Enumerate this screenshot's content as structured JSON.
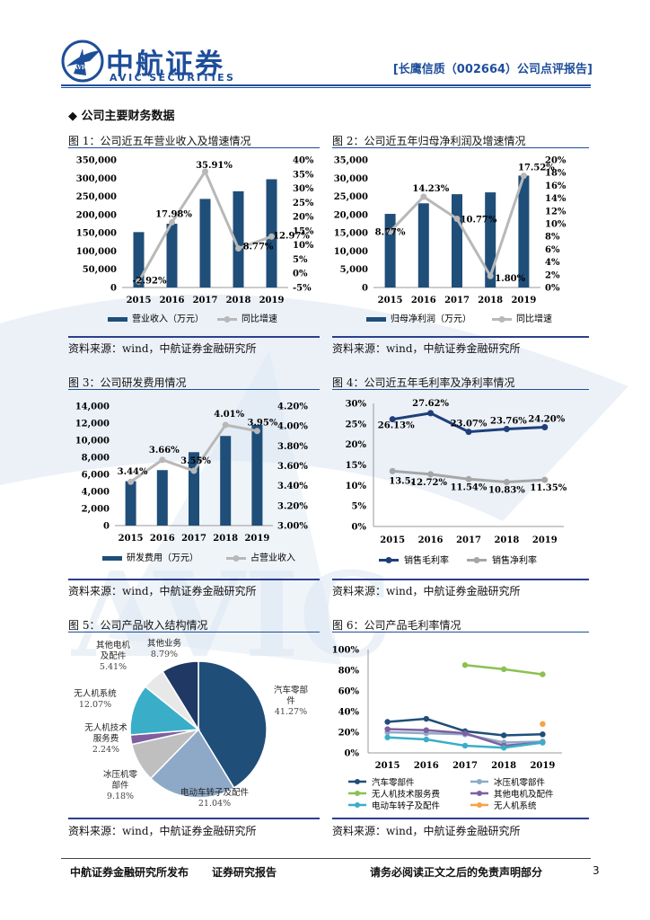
{
  "header": {
    "logo_cn": "中航证券",
    "logo_en": "AVIC SECURITIES",
    "logo_mark": "AVIC",
    "report_tag": "[长鹰信质（002664）公司点评报告]"
  },
  "section_title": "◆  公司主要财务数据",
  "source_text": "资料来源：wind，中航证券金融研究所",
  "footer": {
    "left": "中航证券金融研究所发布",
    "middle": "证券研究报告",
    "right": "请务必阅读正文之后的免责声明部分",
    "page": "3"
  },
  "watermark_text": "AVIC",
  "colors": {
    "bar": "#1f4e79",
    "line_gray": "#b8b8b8",
    "navy_line": "#1f3f7a",
    "accent": "#1e4e9a"
  },
  "chart_data": [
    {
      "id": "fig1",
      "type": "bar",
      "title": "图 1：公司近五年营业收入及增速情况",
      "categories": [
        "2015",
        "2016",
        "2017",
        "2018",
        "2019"
      ],
      "series": [
        {
          "name": "营业收入（万元）",
          "type": "bar",
          "axis": "left",
          "values": [
            152000,
            175000,
            243000,
            264000,
            297000
          ]
        },
        {
          "name": "同比增速",
          "type": "line",
          "axis": "right",
          "values": [
            -2.92,
            17.98,
            35.91,
            8.77,
            12.97
          ],
          "labels": [
            "-2.92%",
            "17.98%",
            "35.91%",
            "8.77%",
            "12.97%"
          ]
        }
      ],
      "left_ticks": [
        "0",
        "50,000",
        "100,000",
        "150,000",
        "200,000",
        "250,000",
        "300,000",
        "350,000"
      ],
      "right_ticks": [
        "-5%",
        "0%",
        "5%",
        "10%",
        "15%",
        "20%",
        "25%",
        "30%",
        "35%",
        "40%"
      ],
      "ylim": [
        0,
        350000
      ],
      "y2lim": [
        -5,
        40
      ]
    },
    {
      "id": "fig2",
      "type": "bar",
      "title": "图 2：公司近五年归母净利润及增速情况",
      "categories": [
        "2015",
        "2016",
        "2017",
        "2018",
        "2019"
      ],
      "series": [
        {
          "name": "归母净利润（万元）",
          "type": "bar",
          "axis": "left",
          "values": [
            20200,
            23100,
            25600,
            26100,
            30700
          ]
        },
        {
          "name": "同比增速",
          "type": "line",
          "axis": "right",
          "values": [
            8.77,
            14.23,
            10.77,
            1.8,
            17.52
          ],
          "labels": [
            "8.77%",
            "14.23%",
            "10.77%",
            "1.80%",
            "17.52%"
          ]
        }
      ],
      "left_ticks": [
        "0",
        "5,000",
        "10,000",
        "15,000",
        "20,000",
        "25,000",
        "30,000",
        "35,000"
      ],
      "right_ticks": [
        "0%",
        "2%",
        "4%",
        "6%",
        "8%",
        "10%",
        "12%",
        "14%",
        "16%",
        "18%",
        "20%"
      ],
      "ylim": [
        0,
        35000
      ],
      "y2lim": [
        0,
        20
      ]
    },
    {
      "id": "fig3",
      "type": "bar",
      "title": "图 3：公司研发费用情况",
      "categories": [
        "2015",
        "2016",
        "2017",
        "2018",
        "2019"
      ],
      "series": [
        {
          "name": "研发费用（万元）",
          "type": "bar",
          "axis": "left",
          "values": [
            5200,
            6500,
            8600,
            10500,
            11800
          ]
        },
        {
          "name": "占营业收入",
          "type": "line",
          "axis": "right",
          "values": [
            3.44,
            3.66,
            3.55,
            4.01,
            3.95
          ],
          "labels": [
            "3.44%",
            "3.66%",
            "3.55%",
            "4.01%",
            "3.95%"
          ]
        }
      ],
      "left_ticks": [
        "0",
        "2,000",
        "4,000",
        "6,000",
        "8,000",
        "10,000",
        "12,000",
        "14,000"
      ],
      "right_ticks": [
        "3.00%",
        "3.20%",
        "3.40%",
        "3.60%",
        "3.80%",
        "4.00%",
        "4.20%"
      ],
      "ylim": [
        0,
        14000
      ],
      "y2lim": [
        3.0,
        4.2
      ]
    },
    {
      "id": "fig4",
      "type": "line",
      "title": "图 4：公司近五年毛利率及净利率情况",
      "categories": [
        "2015",
        "2016",
        "2017",
        "2018",
        "2019"
      ],
      "series": [
        {
          "name": "销售毛利率",
          "values": [
            26.13,
            27.62,
            23.07,
            23.76,
            24.2
          ],
          "labels": [
            "26.13%",
            "27.62%",
            "23.07%",
            "23.76%",
            "24.20%"
          ]
        },
        {
          "name": "销售净利率",
          "values": [
            13.5,
            12.72,
            11.54,
            10.83,
            11.35
          ],
          "labels": [
            "13.5.",
            "12.72%",
            "11.54%",
            "10.83%",
            "11.35%"
          ]
        }
      ],
      "y_ticks": [
        "0%",
        "5%",
        "10%",
        "15%",
        "20%",
        "25%",
        "30%"
      ],
      "ylim": [
        0,
        30
      ]
    },
    {
      "id": "fig5",
      "type": "pie",
      "title": "图 5：公司产品收入结构情况",
      "slices": [
        {
          "name": "汽车零部件",
          "value": 41.27,
          "name_lines": [
            "汽车零部",
            "件"
          ],
          "pct": "41.27%",
          "color": "#1f4e79"
        },
        {
          "name": "电动车转子及配件",
          "value": 21.04,
          "name_lines": [
            "电动车转子及配件"
          ],
          "pct": "21.04%",
          "color": "#8ea9c8"
        },
        {
          "name": "冰压机零部件",
          "value": 9.18,
          "name_lines": [
            "冰压机零",
            "部件"
          ],
          "pct": "9.18%",
          "color": "#bfbfbf"
        },
        {
          "name": "无人机技术服务费",
          "value": 2.24,
          "name_lines": [
            "无人机技术",
            "服务费"
          ],
          "pct": "2.24%",
          "color": "#7f5f9f"
        },
        {
          "name": "无人机系统",
          "value": 12.07,
          "name_lines": [
            "无人机系统"
          ],
          "pct": "12.07%",
          "color": "#3aaec8"
        },
        {
          "name": "其他电机及配件",
          "value": 5.41,
          "name_lines": [
            "其他电机",
            "及配件"
          ],
          "pct": "5.41%",
          "color": "#e8e8e8"
        },
        {
          "name": "其他业务",
          "value": 8.79,
          "name_lines": [
            "其他业务"
          ],
          "pct": "8.79%",
          "color": "#1f3864"
        }
      ]
    },
    {
      "id": "fig6",
      "type": "line",
      "title": "图 6：公司产品毛利率情况",
      "categories": [
        "2015",
        "2016",
        "2017",
        "2018",
        "2019"
      ],
      "series": [
        {
          "name": "汽车零部件",
          "color": "#1f4e79",
          "values": [
            30,
            33,
            21,
            17,
            18
          ]
        },
        {
          "name": "冰压机零部件",
          "color": "#8ea9c8",
          "values": [
            20,
            19,
            18,
            10,
            11
          ]
        },
        {
          "name": "无人机技术服务费",
          "color": "#8cc152",
          "values": [
            null,
            null,
            85,
            81,
            76
          ]
        },
        {
          "name": "其他电机及配件",
          "color": "#7f5f9f",
          "values": [
            23,
            22,
            19,
            7,
            10
          ]
        },
        {
          "name": "电动车转子及配件",
          "color": "#3aaec8",
          "values": [
            15,
            13,
            7,
            5,
            10
          ]
        },
        {
          "name": "无人机系统",
          "color": "#f4a24b",
          "values": [
            null,
            null,
            null,
            null,
            28
          ]
        }
      ],
      "y_ticks": [
        "0%",
        "20%",
        "40%",
        "60%",
        "80%",
        "100%"
      ],
      "ylim": [
        0,
        100
      ]
    }
  ]
}
